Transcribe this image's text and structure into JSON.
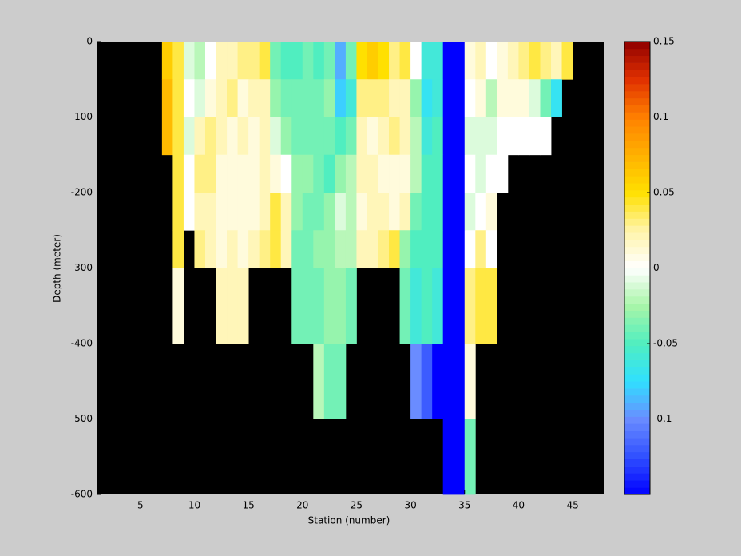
{
  "chart_data": {
    "type": "heatmap",
    "xlabel": "Station (number)",
    "ylabel": "Depth (meter)",
    "x": [
      7,
      8,
      9,
      10,
      11,
      12,
      13,
      14,
      15,
      16,
      17,
      18,
      19,
      20,
      21,
      22,
      23,
      24,
      25,
      26,
      27,
      28,
      29,
      30,
      31,
      32,
      33,
      34,
      35,
      36,
      37,
      38,
      39,
      40,
      41,
      42,
      43,
      44
    ],
    "y_bins": [
      0,
      -50,
      -100,
      -150,
      -200,
      -250,
      -300,
      -400,
      -500,
      -600
    ],
    "values": [
      [
        0.06,
        0.04,
        -0.01,
        -0.02,
        0,
        0.02,
        0.02,
        0.03,
        0.03,
        0.04,
        -0.04,
        -0.05,
        -0.05,
        -0.04,
        -0.05,
        -0.04,
        -0.09,
        -0.04,
        0.05,
        0.06,
        0.05,
        0.03,
        0.04,
        0,
        -0.06,
        -0.06,
        -0.15,
        -0.15,
        0.01,
        0.02,
        0,
        0.01,
        0.02,
        0.03,
        0.04,
        0.03,
        0.02,
        0.04
      ],
      [
        0.07,
        0.04,
        0,
        -0.01,
        0.01,
        0.02,
        0.03,
        0.01,
        0.02,
        0.02,
        -0.03,
        -0.04,
        -0.04,
        -0.04,
        -0.04,
        -0.03,
        -0.08,
        -0.06,
        0.03,
        0.03,
        0.03,
        0.02,
        0.02,
        -0.03,
        -0.07,
        -0.06,
        -0.15,
        -0.15,
        0,
        0.01,
        -0.02,
        0.01,
        0.01,
        0.01,
        -0.01,
        -0.04,
        -0.07,
        null
      ],
      [
        0.07,
        0.04,
        -0.01,
        0.02,
        0.03,
        0.02,
        0.01,
        0.02,
        0.01,
        0.02,
        -0.01,
        -0.03,
        -0.04,
        -0.04,
        -0.04,
        -0.04,
        -0.05,
        -0.04,
        0.02,
        0.01,
        0.02,
        0.03,
        0.02,
        -0.02,
        -0.06,
        -0.05,
        -0.15,
        -0.15,
        -0.01,
        -0.01,
        -0.01,
        0,
        0,
        0,
        0,
        0,
        null,
        null
      ],
      [
        null,
        0.04,
        0,
        0.03,
        0.03,
        0.01,
        0.01,
        0.01,
        0.01,
        0.02,
        0.01,
        0,
        -0.03,
        -0.03,
        -0.04,
        -0.05,
        -0.03,
        -0.02,
        0.02,
        0.02,
        0.01,
        0.01,
        0.01,
        -0.02,
        -0.05,
        -0.05,
        -0.15,
        -0.15,
        0,
        -0.01,
        0,
        0,
        null,
        null,
        null,
        null,
        null,
        null
      ],
      [
        null,
        0.04,
        0,
        0.02,
        0.02,
        0.01,
        0.01,
        0.01,
        0.01,
        0.02,
        0.04,
        0.02,
        -0.03,
        -0.04,
        -0.04,
        -0.03,
        -0.01,
        -0.02,
        0.01,
        0.02,
        0.02,
        0.01,
        0.02,
        -0.04,
        -0.05,
        -0.05,
        -0.15,
        -0.15,
        -0.01,
        0,
        0.01,
        null,
        null,
        null,
        null,
        null,
        null,
        null
      ],
      [
        null,
        0.04,
        null,
        0.03,
        0.02,
        0.01,
        0.02,
        0.01,
        0.02,
        0.03,
        0.04,
        0.02,
        -0.04,
        -0.04,
        -0.03,
        -0.03,
        -0.02,
        -0.02,
        0.02,
        0.02,
        0.03,
        0.04,
        -0.03,
        -0.05,
        -0.05,
        -0.05,
        -0.15,
        -0.15,
        0,
        0.03,
        0,
        null,
        null,
        null,
        null,
        null,
        null,
        null
      ],
      [
        null,
        0.01,
        null,
        null,
        null,
        0.02,
        0.02,
        0.02,
        null,
        null,
        null,
        null,
        -0.04,
        -0.04,
        -0.04,
        -0.03,
        -0.03,
        -0.04,
        null,
        null,
        null,
        null,
        -0.04,
        -0.06,
        -0.05,
        -0.06,
        -0.15,
        -0.15,
        0.03,
        0.04,
        0.04,
        null,
        null,
        null,
        null,
        null,
        null,
        null
      ],
      [
        null,
        null,
        null,
        null,
        null,
        null,
        null,
        null,
        null,
        null,
        null,
        null,
        null,
        null,
        -0.02,
        -0.04,
        -0.04,
        null,
        null,
        null,
        null,
        null,
        null,
        -0.1,
        -0.12,
        -0.15,
        -0.15,
        -0.15,
        0.01,
        null,
        null,
        null,
        null,
        null,
        null,
        null,
        null,
        null
      ],
      [
        null,
        null,
        null,
        null,
        null,
        null,
        null,
        null,
        null,
        null,
        null,
        null,
        null,
        null,
        null,
        null,
        null,
        null,
        null,
        null,
        null,
        null,
        null,
        null,
        null,
        null,
        -0.15,
        -0.15,
        -0.04,
        null,
        null,
        null,
        null,
        null,
        null,
        null,
        null,
        null
      ]
    ],
    "xlim": [
      0.95,
      47.95
    ],
    "xticks": [
      5,
      10,
      15,
      20,
      25,
      30,
      35,
      40,
      45
    ],
    "ylim": [
      -600,
      0
    ],
    "yticks": [
      0,
      -100,
      -200,
      -300,
      -400,
      -500,
      -600
    ],
    "clim": [
      -0.15,
      0.15
    ],
    "cticks": [
      0.15,
      0.1,
      0.05,
      0,
      -0.05,
      -0.1
    ],
    "colormap": [
      "#0000ff",
      "#3050ff",
      "#6a8cff",
      "#30e0ff",
      "#50eec0",
      "#a8f5a8",
      "#ffffff",
      "#fff4a8",
      "#ffe000",
      "#ffb000",
      "#ff8000",
      "#e03000",
      "#900000"
    ],
    "background": "#000000"
  }
}
